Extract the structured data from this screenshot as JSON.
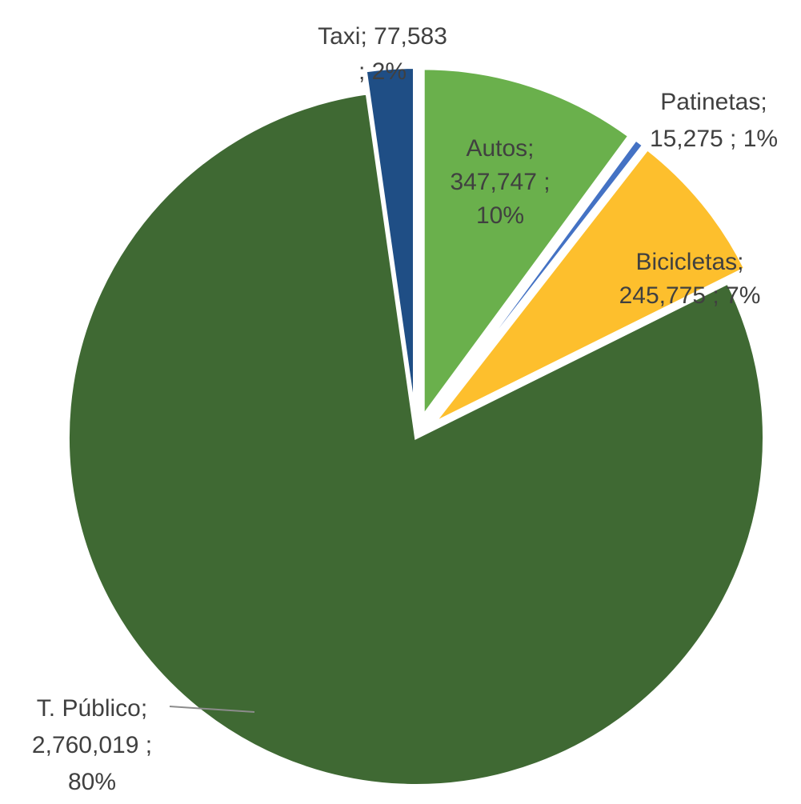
{
  "chart_data": {
    "type": "pie",
    "title": "",
    "slices": [
      {
        "label": "Autos",
        "value": 347747,
        "percent": 10,
        "color": "#6ab04c",
        "exploded": true,
        "label_lines": [
          "Autos;",
          "347,747 ;",
          "10%"
        ],
        "label_color": "#404040"
      },
      {
        "label": "Patinetas",
        "value": 15275,
        "percent": 1,
        "color": "#4472c4",
        "exploded": true,
        "label_lines": [
          "Patinetas;",
          "15,275 ; 1%"
        ],
        "label_color": "#404040"
      },
      {
        "label": "Bicicletas",
        "value": 245775,
        "percent": 7,
        "color": "#fdbf2d",
        "exploded": true,
        "label_lines": [
          "Bicicletas;",
          "245,775 ; 7%"
        ],
        "label_color": "#404040"
      },
      {
        "label": "T. Público",
        "value": 2760019,
        "percent": 80,
        "color": "#3f6933",
        "exploded": false,
        "label_lines": [
          "T. Público;",
          "2,760,019 ;",
          "80%"
        ],
        "label_color": "#404040"
      },
      {
        "label": "Taxi",
        "value": 77583,
        "percent": 2,
        "color": "#1f4e85",
        "exploded": true,
        "label_lines": [
          "Taxi;  77,583",
          "; 2%"
        ],
        "label_color": "#404040"
      }
    ],
    "start": "12 o'clock",
    "direction": "clockwise",
    "legend": "none"
  }
}
